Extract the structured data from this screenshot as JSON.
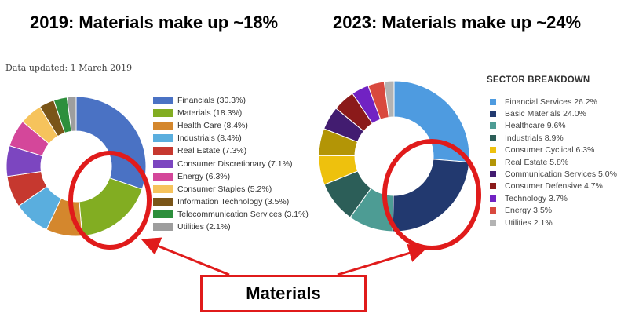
{
  "titles": {
    "left": "2019: Materials make up ~18%",
    "right": "2023: Materials make up ~24%"
  },
  "left_note": "Data updated: 1 March 2019",
  "right_heading": "SECTOR BREAKDOWN",
  "callout_label": "Materials",
  "colors": {
    "callout": "#e01b1b"
  },
  "chart_data": [
    {
      "type": "pie",
      "variant": "donut",
      "title": "2019: Materials make up ~18%",
      "legend_position": "right",
      "slices": [
        {
          "label": "Financials (30.3%)",
          "value": 30.3,
          "color": "#4a72c4"
        },
        {
          "label": "Materials (18.3%)",
          "value": 18.3,
          "color": "#82ad22"
        },
        {
          "label": "Health Care (8.4%)",
          "value": 8.4,
          "color": "#d4872d"
        },
        {
          "label": "Industrials (8.4%)",
          "value": 8.4,
          "color": "#5aaede"
        },
        {
          "label": "Real Estate (7.3%)",
          "value": 7.3,
          "color": "#c6382f"
        },
        {
          "label": "Consumer Discretionary (7.1%)",
          "value": 7.1,
          "color": "#7c46c0"
        },
        {
          "label": "Energy (6.3%)",
          "value": 6.3,
          "color": "#d4479a"
        },
        {
          "label": "Consumer Staples (5.2%)",
          "value": 5.2,
          "color": "#f6c35c"
        },
        {
          "label": "Information Technology (3.5%)",
          "value": 3.5,
          "color": "#7a5518"
        },
        {
          "label": "Telecommunication Services (3.1%)",
          "value": 3.1,
          "color": "#2d8f3c"
        },
        {
          "label": "Utilities (2.1%)",
          "value": 2.1,
          "color": "#9e9e9e"
        }
      ]
    },
    {
      "type": "pie",
      "variant": "donut",
      "title": "2023: Materials make up ~24%",
      "legend_title": "SECTOR BREAKDOWN",
      "legend_position": "right",
      "slices": [
        {
          "label": "Financial Services 26.2%",
          "value": 26.2,
          "color": "#4e9be0"
        },
        {
          "label": "Basic Materials 24.0%",
          "value": 24.0,
          "color": "#22396f"
        },
        {
          "label": "Healthcare 9.6%",
          "value": 9.6,
          "color": "#4d9c94"
        },
        {
          "label": "Industrials 8.9%",
          "value": 8.9,
          "color": "#2c5e58"
        },
        {
          "label": "Consumer Cyclical 6.3%",
          "value": 6.3,
          "color": "#eec10d"
        },
        {
          "label": "Real Estate 5.8%",
          "value": 5.8,
          "color": "#b39506"
        },
        {
          "label": "Communication Services 5.0%",
          "value": 5.0,
          "color": "#421c70"
        },
        {
          "label": "Consumer Defensive 4.7%",
          "value": 4.7,
          "color": "#8b1a1a"
        },
        {
          "label": "Technology 3.7%",
          "value": 3.7,
          "color": "#7122c3"
        },
        {
          "label": "Energy 3.5%",
          "value": 3.5,
          "color": "#d9493e"
        },
        {
          "label": "Utilities 2.1%",
          "value": 2.1,
          "color": "#b3b3b3"
        }
      ]
    }
  ]
}
